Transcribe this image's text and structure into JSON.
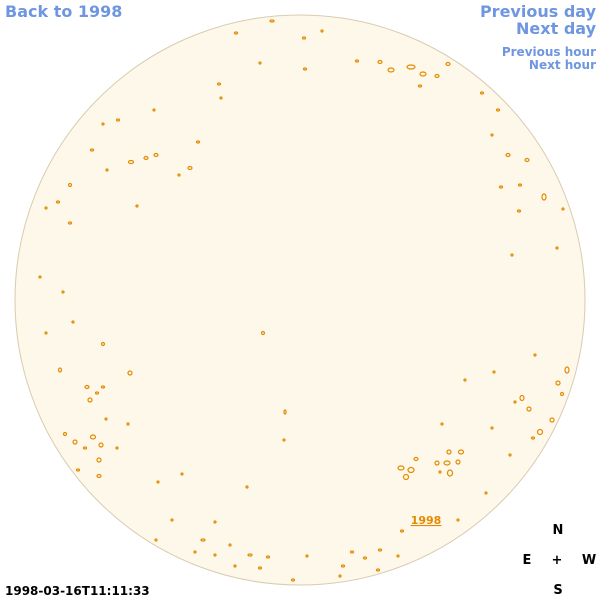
{
  "nav": {
    "back": "Back to 1998",
    "previous_day": "Previous day",
    "next_day": "Next day",
    "previous_hour": "Previous hour",
    "next_hour": "Next hour"
  },
  "map": {
    "label": "1998"
  },
  "compass": {
    "north": "N",
    "east": "E",
    "center": "+",
    "west": "W",
    "south": "S"
  },
  "timestamp": "1998-03-16T11:11:33"
}
